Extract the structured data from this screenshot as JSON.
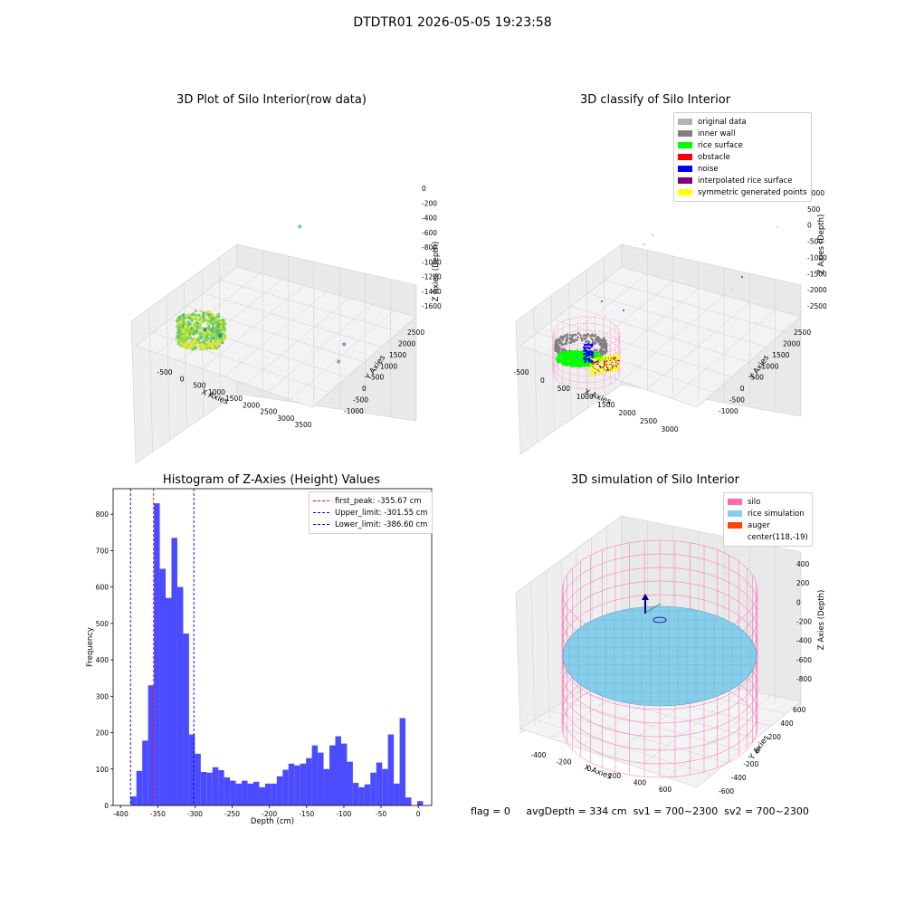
{
  "figure_title": "DTDTR01 2026-05-05 19:23:58",
  "footer": {
    "flag": "flag = 0",
    "avg_depth": "avgDepth = 334 cm",
    "sv1": "sv1 = 700~2300",
    "sv2": "sv2 = 700~2300"
  },
  "colors": {
    "hist_bar": "#4b4bff",
    "peak_line": "#ff0000",
    "limit_line": "#0000cc",
    "original": "#b3b3b3",
    "inner_wall": "#808080",
    "rice_surface": "#00ff00",
    "obstacle": "#ff0000",
    "noise": "#0000ff",
    "interpolated": "#800080",
    "symmetric": "#ffff00",
    "silo": "#ff69b4",
    "rice_sim": "#87ceeb",
    "auger": "#ff4500"
  },
  "chart_data": [
    {
      "type": "scatter",
      "title": "3D Plot of Silo Interior(row data)",
      "xlabel": "X Axies",
      "ylabel": "Y Axies",
      "zlabel": "Z Axies (Depth)",
      "x_ticks": [
        "-500",
        "0",
        "500",
        "1000",
        "1500",
        "2000",
        "2500",
        "3000",
        "3500"
      ],
      "y_ticks": [
        "-1000",
        "-500",
        "0",
        "500",
        "1000",
        "1500",
        "2000",
        "2500"
      ],
      "z_ticks": [
        "0",
        "-200",
        "-400",
        "-600",
        "-800",
        "-1000",
        "-1200",
        "-1400",
        "-1600"
      ],
      "xlim": [
        -600,
        3600
      ],
      "ylim": [
        -1100,
        2600
      ],
      "zlim": [
        -1700,
        100
      ],
      "cluster": {
        "x_range": [
          -200,
          300
        ],
        "y_range": [
          -400,
          300
        ],
        "z_range": [
          -500,
          -200
        ]
      },
      "outliers": [
        {
          "x": 1400,
          "y": 1800,
          "z": -550
        },
        {
          "x": 500,
          "y": -300,
          "z": -1500
        },
        {
          "x": 800,
          "y": -200,
          "z": -1550
        },
        {
          "x": 3200,
          "y": 700,
          "z": -1450
        },
        {
          "x": 3400,
          "y": 200,
          "z": -1500
        }
      ]
    },
    {
      "type": "scatter",
      "title": "3D classify of Silo Interior",
      "xlabel": "X Axies",
      "ylabel": "Y Axies",
      "zlabel": "Z Axies (Depth)",
      "x_ticks": [
        "-500",
        "0",
        "500",
        "1000",
        "1500",
        "2000",
        "2500",
        "3000"
      ],
      "y_ticks": [
        "-1000",
        "-500",
        "0",
        "500",
        "1000",
        "1500",
        "2000",
        "2500"
      ],
      "z_ticks": [
        "1000",
        "500",
        "0",
        "-500",
        "-1000",
        "-1500",
        "-2000",
        "-2500"
      ],
      "legend": [
        "original data",
        "inner wall",
        "rice surface",
        "obstacle",
        "noise",
        "interpolated rice surface",
        "symmetric generated points"
      ],
      "legend_position": "top-right"
    },
    {
      "type": "bar",
      "title": "Histogram of Z-Axies (Height) Values",
      "xlabel": "Depth (cm)",
      "ylabel": "Frequency",
      "xlim": [
        -410,
        18
      ],
      "ylim": [
        0,
        870
      ],
      "x_ticks": [
        -400,
        -350,
        -300,
        -250,
        -200,
        -150,
        -100,
        -50,
        0
      ],
      "y_ticks": [
        0,
        100,
        200,
        300,
        400,
        500,
        600,
        700,
        800
      ],
      "bin_start": -386.6,
      "bin_width": 7.86,
      "values": [
        25,
        95,
        178,
        330,
        830,
        650,
        570,
        735,
        600,
        472,
        195,
        142,
        92,
        90,
        105,
        97,
        77,
        68,
        60,
        68,
        60,
        65,
        50,
        60,
        60,
        80,
        98,
        115,
        110,
        115,
        130,
        165,
        145,
        100,
        165,
        190,
        170,
        120,
        62,
        50,
        58,
        90,
        118,
        100,
        195,
        60,
        240,
        22,
        0,
        12
      ],
      "lines": [
        {
          "name": "first_peak: -355.67 cm",
          "x": -355.67,
          "role": "peak"
        },
        {
          "name": "Upper_limit: -301.55 cm",
          "x": -301.55,
          "role": "limit"
        },
        {
          "name": "Lower_limit: -386.60 cm",
          "x": -386.6,
          "role": "limit"
        }
      ],
      "legend_position": "top-right"
    },
    {
      "type": "scatter",
      "title": "3D simulation of Silo Interior",
      "xlabel": "X Axies",
      "ylabel": "Y Axies",
      "zlabel": "Z Axies (Depth)",
      "x_ticks": [
        "-400",
        "-200",
        "0",
        "200",
        "400",
        "600"
      ],
      "y_ticks": [
        "600",
        "400",
        "200",
        "0",
        "-200",
        "-400",
        "-600"
      ],
      "z_ticks": [
        "400",
        "200",
        "0",
        "-200",
        "-400",
        "-600",
        "-800"
      ],
      "legend": [
        "silo",
        "rice simulation",
        "auger",
        "center(118,-19)"
      ],
      "legend_position": "top-right"
    }
  ]
}
